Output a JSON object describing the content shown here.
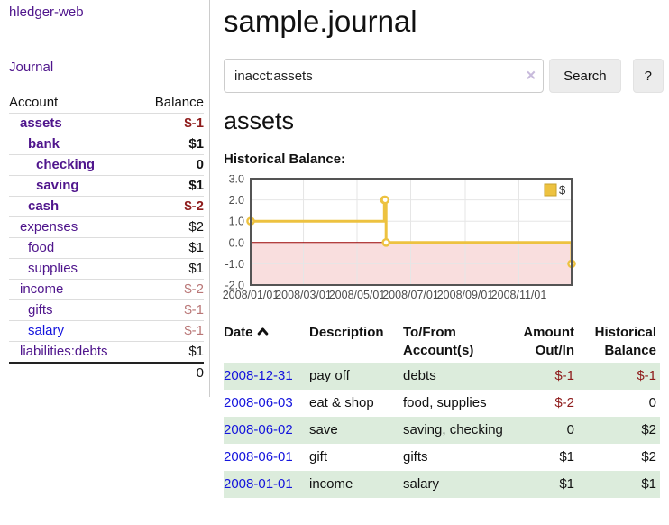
{
  "colors": {
    "link_purple": "#4f158c",
    "link_blue": "#1414dd",
    "neg_strong": "#8e1b1b",
    "neg_soft": "#b97676",
    "stripe_green": "#dcecdc",
    "chart_gold": "#edc240",
    "chart_gold_border": "#c7a22c",
    "chart_border": "#545454",
    "chart_grid": "#e6e6e6",
    "chart_tick_text": "#4d4d4d",
    "zero_line": "#990000",
    "negative_region": "#f9dede"
  },
  "sidebar": {
    "brand": "hledger-web",
    "nav": {
      "journal": "Journal"
    },
    "accounts_table": {
      "headers": {
        "account": "Account",
        "balance": "Balance"
      },
      "rows": [
        {
          "name": "assets",
          "balance": "$-1",
          "indent": 0,
          "bold": true,
          "neg": "strong",
          "link": "purple"
        },
        {
          "name": "bank",
          "balance": "$1",
          "indent": 1,
          "bold": true,
          "neg": "none",
          "link": "purple"
        },
        {
          "name": "checking",
          "balance": "0",
          "indent": 2,
          "bold": true,
          "neg": "none",
          "link": "purple"
        },
        {
          "name": "saving",
          "balance": "$1",
          "indent": 2,
          "bold": true,
          "neg": "none",
          "link": "purple"
        },
        {
          "name": "cash",
          "balance": "$-2",
          "indent": 1,
          "bold": true,
          "neg": "strong",
          "link": "purple"
        },
        {
          "name": "expenses",
          "balance": "$2",
          "indent": 0,
          "bold": false,
          "neg": "none",
          "link": "purple"
        },
        {
          "name": "food",
          "balance": "$1",
          "indent": 1,
          "bold": false,
          "neg": "none",
          "link": "purple"
        },
        {
          "name": "supplies",
          "balance": "$1",
          "indent": 1,
          "bold": false,
          "neg": "none",
          "link": "purple"
        },
        {
          "name": "income",
          "balance": "$-2",
          "indent": 0,
          "bold": false,
          "neg": "soft",
          "link": "purple"
        },
        {
          "name": "gifts",
          "balance": "$-1",
          "indent": 1,
          "bold": false,
          "neg": "soft",
          "link": "purple"
        },
        {
          "name": "salary",
          "balance": "$-1",
          "indent": 1,
          "bold": false,
          "neg": "soft",
          "link": "blue"
        },
        {
          "name": "liabilities:debts",
          "balance": "$1",
          "indent": 0,
          "bold": false,
          "neg": "none",
          "link": "purple"
        }
      ],
      "total": "0"
    }
  },
  "header": {
    "title": "sample.journal"
  },
  "search": {
    "query": "inacct:assets",
    "clear_icon": "×",
    "button": "Search",
    "help_button": "?"
  },
  "account_page": {
    "title": "assets",
    "chart_label": "Historical Balance:"
  },
  "chart_data": {
    "type": "line",
    "title": "Historical Balance",
    "step": true,
    "series": [
      {
        "name": "$",
        "color": "#edc240",
        "points": [
          [
            "2008-01-01",
            1
          ],
          [
            "2008-06-01",
            2
          ],
          [
            "2008-06-02",
            2
          ],
          [
            "2008-06-03",
            0
          ],
          [
            "2008-12-31",
            -1
          ]
        ]
      }
    ],
    "xlim": [
      "2008-01-01",
      "2008-12-31"
    ],
    "ylim": [
      -2,
      3
    ],
    "yticks": [
      3.0,
      2.0,
      1.0,
      0.0,
      -1.0,
      -2.0
    ],
    "xticks": [
      "2008/01/01",
      "2008/03/01",
      "2008/05/01",
      "2008/07/01",
      "2008/09/01",
      "2008/11/01"
    ],
    "grid": true,
    "legend_position": "ne"
  },
  "register": {
    "headers": {
      "date": "Date",
      "description": "Description",
      "accounts": "To/From Account(s)",
      "amount": "Amount Out/In",
      "balance": "Historical Balance"
    },
    "rows": [
      {
        "date": "2008-12-31",
        "description": "pay off",
        "accounts": "debts",
        "amount": "$-1",
        "amount_neg": true,
        "balance": "$-1",
        "balance_neg": true
      },
      {
        "date": "2008-06-03",
        "description": "eat & shop",
        "accounts": "food, supplies",
        "amount": "$-2",
        "amount_neg": true,
        "balance": "0",
        "balance_neg": false
      },
      {
        "date": "2008-06-02",
        "description": "save",
        "accounts": "saving, checking",
        "amount": "0",
        "amount_neg": false,
        "balance": "$2",
        "balance_neg": false
      },
      {
        "date": "2008-06-01",
        "description": "gift",
        "accounts": "gifts",
        "amount": "$1",
        "amount_neg": false,
        "balance": "$2",
        "balance_neg": false
      },
      {
        "date": "2008-01-01",
        "description": "income",
        "accounts": "salary",
        "amount": "$1",
        "amount_neg": false,
        "balance": "$1",
        "balance_neg": false
      }
    ]
  }
}
